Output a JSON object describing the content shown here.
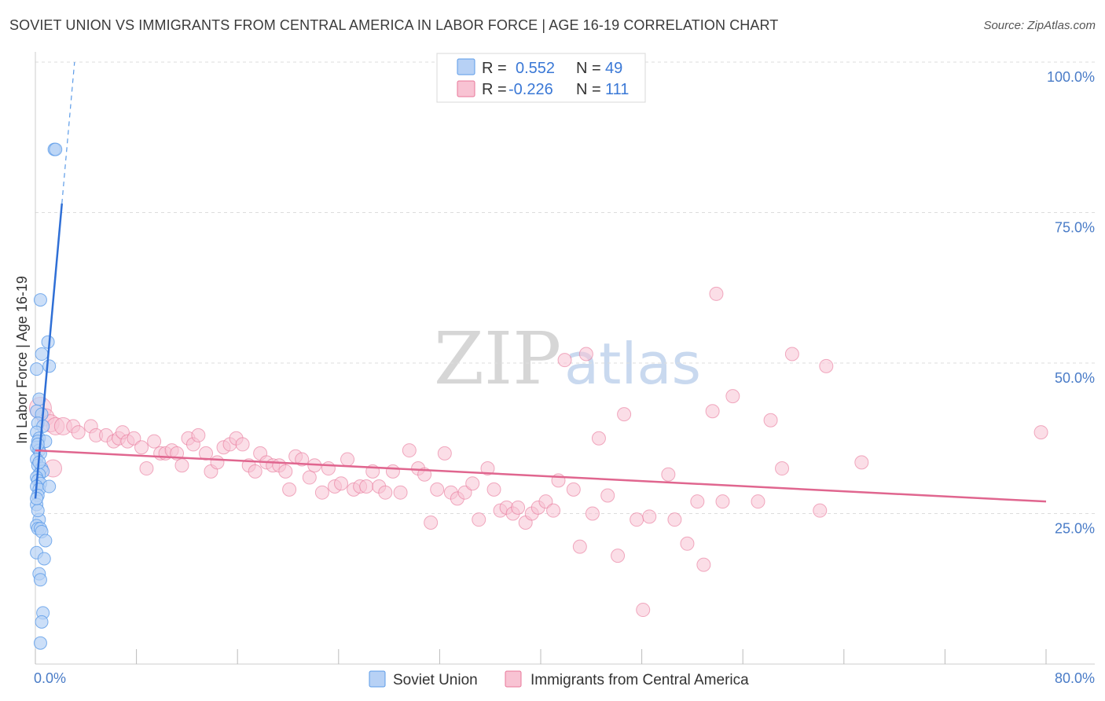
{
  "header": {
    "title": "SOVIET UNION VS IMMIGRANTS FROM CENTRAL AMERICA IN LABOR FORCE | AGE 16-19 CORRELATION CHART",
    "source": "Source: ZipAtlas.com"
  },
  "watermark": {
    "zip": "ZIP",
    "atlas": "atlas"
  },
  "legend": {
    "r_label": "R =",
    "n_label": "N =",
    "rows": [
      {
        "r": "0.552",
        "n": "49",
        "color": "#5b9be8",
        "fill": "#b7d1f5"
      },
      {
        "r": "-0.226",
        "n": "111",
        "color": "#e8779a",
        "fill": "#f8c3d3"
      }
    ]
  },
  "chart_data": {
    "type": "scatter",
    "title": "SOVIET UNION VS IMMIGRANTS FROM CENTRAL AMERICA IN LABOR FORCE | AGE 16-19 CORRELATION CHART",
    "xlabel": "",
    "ylabel": "In Labor Force | Age 16-19",
    "xlim": [
      0,
      80
    ],
    "ylim": [
      0,
      100
    ],
    "x_tick_labels": [
      "0.0%",
      "80.0%"
    ],
    "y_ticks": [
      25,
      50,
      75,
      100
    ],
    "y_tick_labels": [
      "25.0%",
      "50.0%",
      "75.0%",
      "100.0%"
    ],
    "grid": true,
    "legend_position": "bottom-center",
    "series": [
      {
        "name": "Soviet Union",
        "color": "#5b9be8",
        "fill": "#b7d1f5",
        "trend": {
          "x0": 0,
          "y0": 27.5,
          "x1": 2.1,
          "y1": 76.5,
          "dash_to_x": 3.1,
          "dash_to_y": 100
        },
        "points": [
          [
            1.5,
            85.5
          ],
          [
            1.6,
            85.5
          ],
          [
            0.4,
            60.5
          ],
          [
            1.0,
            53.5
          ],
          [
            0.5,
            51.5
          ],
          [
            1.1,
            49.5
          ],
          [
            0.1,
            49.0
          ],
          [
            0.3,
            44.0
          ],
          [
            0.1,
            42.0
          ],
          [
            0.5,
            41.5
          ],
          [
            0.2,
            40.0
          ],
          [
            0.6,
            39.5
          ],
          [
            0.1,
            38.5
          ],
          [
            0.3,
            37.5
          ],
          [
            0.2,
            37.0
          ],
          [
            0.8,
            37.0
          ],
          [
            0.1,
            36.0
          ],
          [
            0.3,
            35.5
          ],
          [
            0.4,
            35.0
          ],
          [
            0.1,
            34.0
          ],
          [
            0.2,
            33.0
          ],
          [
            0.5,
            32.5
          ],
          [
            0.6,
            32.0
          ],
          [
            0.3,
            31.5
          ],
          [
            0.1,
            31.0
          ],
          [
            0.2,
            30.5
          ],
          [
            0.4,
            30.0
          ],
          [
            0.1,
            29.5
          ],
          [
            0.3,
            29.0
          ],
          [
            1.1,
            29.5
          ],
          [
            0.2,
            28.0
          ],
          [
            0.1,
            26.5
          ],
          [
            0.3,
            24.0
          ],
          [
            0.1,
            23.0
          ],
          [
            0.2,
            22.5
          ],
          [
            0.4,
            22.5
          ],
          [
            0.5,
            22.0
          ],
          [
            0.8,
            20.5
          ],
          [
            0.1,
            18.5
          ],
          [
            0.7,
            17.5
          ],
          [
            0.3,
            15.0
          ],
          [
            0.4,
            14.0
          ],
          [
            0.6,
            8.5
          ],
          [
            0.5,
            7.0
          ],
          [
            0.4,
            3.5
          ],
          [
            0.2,
            25.5
          ],
          [
            0.1,
            27.5
          ],
          [
            0.3,
            33.5
          ],
          [
            0.2,
            36.5
          ]
        ]
      },
      {
        "name": "Immigrants from Central America",
        "color": "#e8779a",
        "fill": "#f8c3d3",
        "trend": {
          "x0": 0,
          "y0": 35.5,
          "x1": 80,
          "y1": 27.0
        },
        "points": [
          [
            0.4,
            42.5
          ],
          [
            0.8,
            41.0
          ],
          [
            1.2,
            40.0
          ],
          [
            1.6,
            39.5
          ],
          [
            2.2,
            39.5
          ],
          [
            3.0,
            39.5
          ],
          [
            3.4,
            38.5
          ],
          [
            4.4,
            39.5
          ],
          [
            4.8,
            38.0
          ],
          [
            5.6,
            38.0
          ],
          [
            6.2,
            37.0
          ],
          [
            6.6,
            37.5
          ],
          [
            6.9,
            38.5
          ],
          [
            7.3,
            37.0
          ],
          [
            7.8,
            37.5
          ],
          [
            8.4,
            36.0
          ],
          [
            8.8,
            32.5
          ],
          [
            9.4,
            37.0
          ],
          [
            9.9,
            35.0
          ],
          [
            10.3,
            35.0
          ],
          [
            10.8,
            35.5
          ],
          [
            11.2,
            35.0
          ],
          [
            11.6,
            33.0
          ],
          [
            12.1,
            37.5
          ],
          [
            12.5,
            36.5
          ],
          [
            12.9,
            38.0
          ],
          [
            13.5,
            35.0
          ],
          [
            13.9,
            32.0
          ],
          [
            14.4,
            33.5
          ],
          [
            14.9,
            36.0
          ],
          [
            15.4,
            36.5
          ],
          [
            15.9,
            37.5
          ],
          [
            16.4,
            36.5
          ],
          [
            16.9,
            33.0
          ],
          [
            17.4,
            32.0
          ],
          [
            17.8,
            35.0
          ],
          [
            18.3,
            33.5
          ],
          [
            18.8,
            33.0
          ],
          [
            19.3,
            33.0
          ],
          [
            19.8,
            32.0
          ],
          [
            20.1,
            29.0
          ],
          [
            20.6,
            34.5
          ],
          [
            21.1,
            34.0
          ],
          [
            21.7,
            31.0
          ],
          [
            22.1,
            33.0
          ],
          [
            22.7,
            28.5
          ],
          [
            23.2,
            32.5
          ],
          [
            23.7,
            29.5
          ],
          [
            24.2,
            30.0
          ],
          [
            24.7,
            34.0
          ],
          [
            25.2,
            29.0
          ],
          [
            25.7,
            29.5
          ],
          [
            26.2,
            29.5
          ],
          [
            26.7,
            32.0
          ],
          [
            27.2,
            29.5
          ],
          [
            27.7,
            28.5
          ],
          [
            28.3,
            32.0
          ],
          [
            28.9,
            28.5
          ],
          [
            29.6,
            35.5
          ],
          [
            30.3,
            32.5
          ],
          [
            30.8,
            31.5
          ],
          [
            31.3,
            23.5
          ],
          [
            31.8,
            29.0
          ],
          [
            32.4,
            35.0
          ],
          [
            32.9,
            28.5
          ],
          [
            33.4,
            27.5
          ],
          [
            34.0,
            28.5
          ],
          [
            34.6,
            30.0
          ],
          [
            35.1,
            24.0
          ],
          [
            35.8,
            32.5
          ],
          [
            36.3,
            29.0
          ],
          [
            36.8,
            25.5
          ],
          [
            37.3,
            26.0
          ],
          [
            37.8,
            25.0
          ],
          [
            38.2,
            26.0
          ],
          [
            38.8,
            23.5
          ],
          [
            39.3,
            25.0
          ],
          [
            39.8,
            26.0
          ],
          [
            40.4,
            27.0
          ],
          [
            41.0,
            25.5
          ],
          [
            41.4,
            30.5
          ],
          [
            41.9,
            50.5
          ],
          [
            42.6,
            29.0
          ],
          [
            43.1,
            19.5
          ],
          [
            43.6,
            51.5
          ],
          [
            44.1,
            25.0
          ],
          [
            44.6,
            37.5
          ],
          [
            45.3,
            28.0
          ],
          [
            46.1,
            18.0
          ],
          [
            46.6,
            41.5
          ],
          [
            47.6,
            24.0
          ],
          [
            48.1,
            9.0
          ],
          [
            48.6,
            24.5
          ],
          [
            50.1,
            31.5
          ],
          [
            50.6,
            24.0
          ],
          [
            51.6,
            20.0
          ],
          [
            52.4,
            27.0
          ],
          [
            52.9,
            16.5
          ],
          [
            53.6,
            42.0
          ],
          [
            54.4,
            27.0
          ],
          [
            55.2,
            44.5
          ],
          [
            53.9,
            61.5
          ],
          [
            57.2,
            27.0
          ],
          [
            58.2,
            40.5
          ],
          [
            59.1,
            32.5
          ],
          [
            59.9,
            51.5
          ],
          [
            62.1,
            25.5
          ],
          [
            62.6,
            49.5
          ],
          [
            65.4,
            33.5
          ],
          [
            79.6,
            38.5
          ],
          [
            1.4,
            32.5
          ]
        ]
      }
    ]
  },
  "bottom_legend": {
    "items": [
      {
        "label": "Soviet Union"
      },
      {
        "label": "Immigrants from Central America"
      }
    ]
  }
}
